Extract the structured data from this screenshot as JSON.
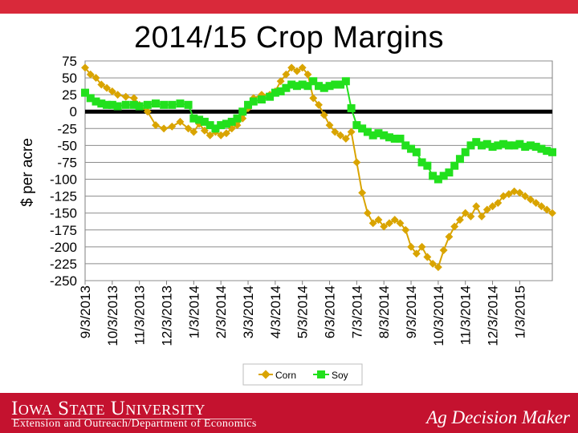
{
  "header": {
    "title": "2014/15 Crop Margins"
  },
  "footer": {
    "university": "Iowa State University",
    "department": "Extension and Outreach/Department of Economics",
    "brand": "Ag Decision Maker"
  },
  "colors": {
    "corn": "#d9a400",
    "soy": "#22e01d",
    "footer": "#c4122f",
    "accent_bar": "#d9293a"
  },
  "chart_data": {
    "type": "line",
    "title": "2014/15 Crop Margins",
    "xlabel": "",
    "ylabel": "$ per acre",
    "ylim": [
      -250,
      75
    ],
    "yticks": [
      75,
      50,
      25,
      0,
      -25,
      -50,
      -75,
      -100,
      -125,
      -150,
      -175,
      -200,
      -225,
      -250
    ],
    "grid": true,
    "legend": "bottom-center",
    "x_tick_labels": [
      "9/3/2013",
      "10/3/2013",
      "11/3/2013",
      "12/3/2013",
      "1/3/2014",
      "2/3/2014",
      "3/3/2014",
      "4/3/2014",
      "5/3/2014",
      "6/3/2014",
      "7/3/2014",
      "8/3/2014",
      "9/3/2014",
      "10/3/2014",
      "11/3/2014",
      "12/3/2014",
      "1/3/2015"
    ],
    "x_unit": "months since 9/3/2013",
    "x_range": [
      0,
      17.2
    ],
    "series": [
      {
        "name": "Corn",
        "x": [
          0,
          0.2,
          0.4,
          0.6,
          0.8,
          1.0,
          1.2,
          1.5,
          1.8,
          2.0,
          2.3,
          2.6,
          2.9,
          3.2,
          3.5,
          3.8,
          4.0,
          4.2,
          4.4,
          4.6,
          4.8,
          5.0,
          5.2,
          5.4,
          5.6,
          5.8,
          6.0,
          6.2,
          6.5,
          6.8,
          7.0,
          7.2,
          7.4,
          7.6,
          7.8,
          8.0,
          8.2,
          8.4,
          8.6,
          8.8,
          9.0,
          9.2,
          9.4,
          9.6,
          9.8,
          10.0,
          10.2,
          10.4,
          10.6,
          10.8,
          11.0,
          11.2,
          11.4,
          11.6,
          11.8,
          12.0,
          12.2,
          12.4,
          12.6,
          12.8,
          13.0,
          13.2,
          13.4,
          13.6,
          13.8,
          14.0,
          14.2,
          14.4,
          14.6,
          14.8,
          15.0,
          15.2,
          15.4,
          15.6,
          15.8,
          16.0,
          16.2,
          16.4,
          16.6,
          16.8,
          17.0,
          17.2
        ],
        "values": [
          65,
          55,
          50,
          40,
          35,
          30,
          25,
          22,
          20,
          10,
          0,
          -20,
          -25,
          -22,
          -15,
          -25,
          -30,
          -18,
          -28,
          -35,
          -30,
          -35,
          -32,
          -25,
          -20,
          -10,
          5,
          20,
          25,
          25,
          30,
          45,
          55,
          65,
          60,
          65,
          55,
          20,
          10,
          -5,
          -20,
          -30,
          -35,
          -40,
          -30,
          -75,
          -120,
          -150,
          -165,
          -160,
          -170,
          -165,
          -160,
          -165,
          -175,
          -200,
          -210,
          -200,
          -215,
          -225,
          -230,
          -205,
          -185,
          -170,
          -160,
          -150,
          -155,
          -140,
          -155,
          -145,
          -140,
          -135,
          -125,
          -122,
          -118,
          -120,
          -125,
          -130,
          -135,
          -140,
          -145,
          -150
        ]
      },
      {
        "name": "Soy",
        "x": [
          0,
          0.2,
          0.4,
          0.6,
          0.8,
          1.0,
          1.2,
          1.5,
          1.8,
          2.0,
          2.3,
          2.6,
          2.9,
          3.2,
          3.5,
          3.8,
          4.0,
          4.2,
          4.4,
          4.6,
          4.8,
          5.0,
          5.2,
          5.4,
          5.6,
          5.8,
          6.0,
          6.2,
          6.5,
          6.8,
          7.0,
          7.2,
          7.4,
          7.6,
          7.8,
          8.0,
          8.2,
          8.4,
          8.6,
          8.8,
          9.0,
          9.2,
          9.4,
          9.6,
          9.8,
          10.0,
          10.2,
          10.4,
          10.6,
          10.8,
          11.0,
          11.2,
          11.4,
          11.6,
          11.8,
          12.0,
          12.2,
          12.4,
          12.6,
          12.8,
          13.0,
          13.2,
          13.4,
          13.6,
          13.8,
          14.0,
          14.2,
          14.4,
          14.6,
          14.8,
          15.0,
          15.2,
          15.4,
          15.6,
          15.8,
          16.0,
          16.2,
          16.4,
          16.6,
          16.8,
          17.0,
          17.2
        ],
        "values": [
          28,
          20,
          15,
          12,
          10,
          10,
          8,
          10,
          10,
          8,
          10,
          12,
          10,
          10,
          12,
          10,
          -10,
          -12,
          -15,
          -20,
          -25,
          -20,
          -18,
          -15,
          -10,
          0,
          10,
          15,
          18,
          22,
          28,
          30,
          35,
          40,
          38,
          40,
          38,
          45,
          38,
          35,
          38,
          40,
          40,
          45,
          5,
          -20,
          -25,
          -30,
          -35,
          -32,
          -35,
          -38,
          -40,
          -40,
          -50,
          -55,
          -60,
          -75,
          -80,
          -95,
          -100,
          -95,
          -90,
          -80,
          -70,
          -60,
          -50,
          -45,
          -50,
          -48,
          -52,
          -50,
          -48,
          -50,
          -50,
          -48,
          -52,
          -50,
          -52,
          -55,
          -58,
          -60
        ]
      }
    ]
  }
}
